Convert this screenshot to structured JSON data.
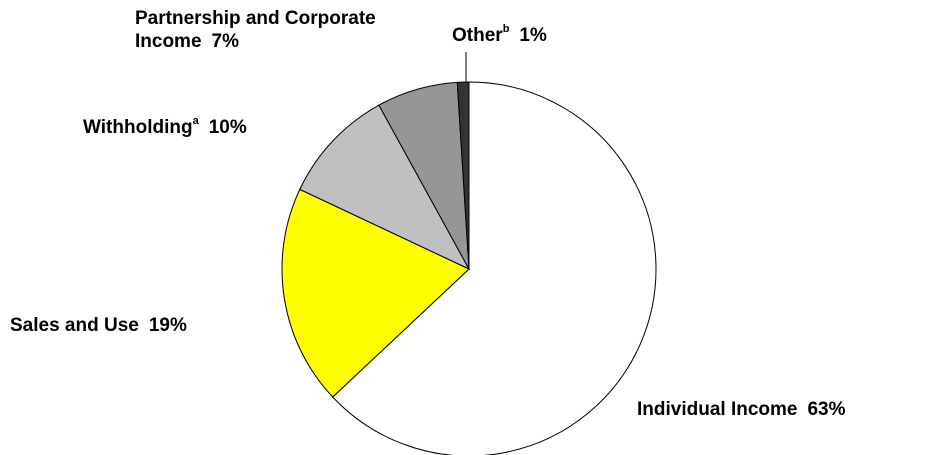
{
  "chart_data": {
    "type": "pie",
    "categories": [
      "Individual Income",
      "Sales and Use",
      "Withholding",
      "Partnership and Corporate Income",
      "Other"
    ],
    "label_notes": [
      null,
      null,
      "a",
      null,
      "b"
    ],
    "values": [
      63,
      19,
      10,
      7,
      1
    ],
    "value_labels": [
      "63%",
      "19%",
      "10%",
      "7%",
      "1%"
    ],
    "colors": [
      "#ffffff",
      "#ffff00",
      "#c0c0c0",
      "#969696",
      "#333333"
    ]
  }
}
